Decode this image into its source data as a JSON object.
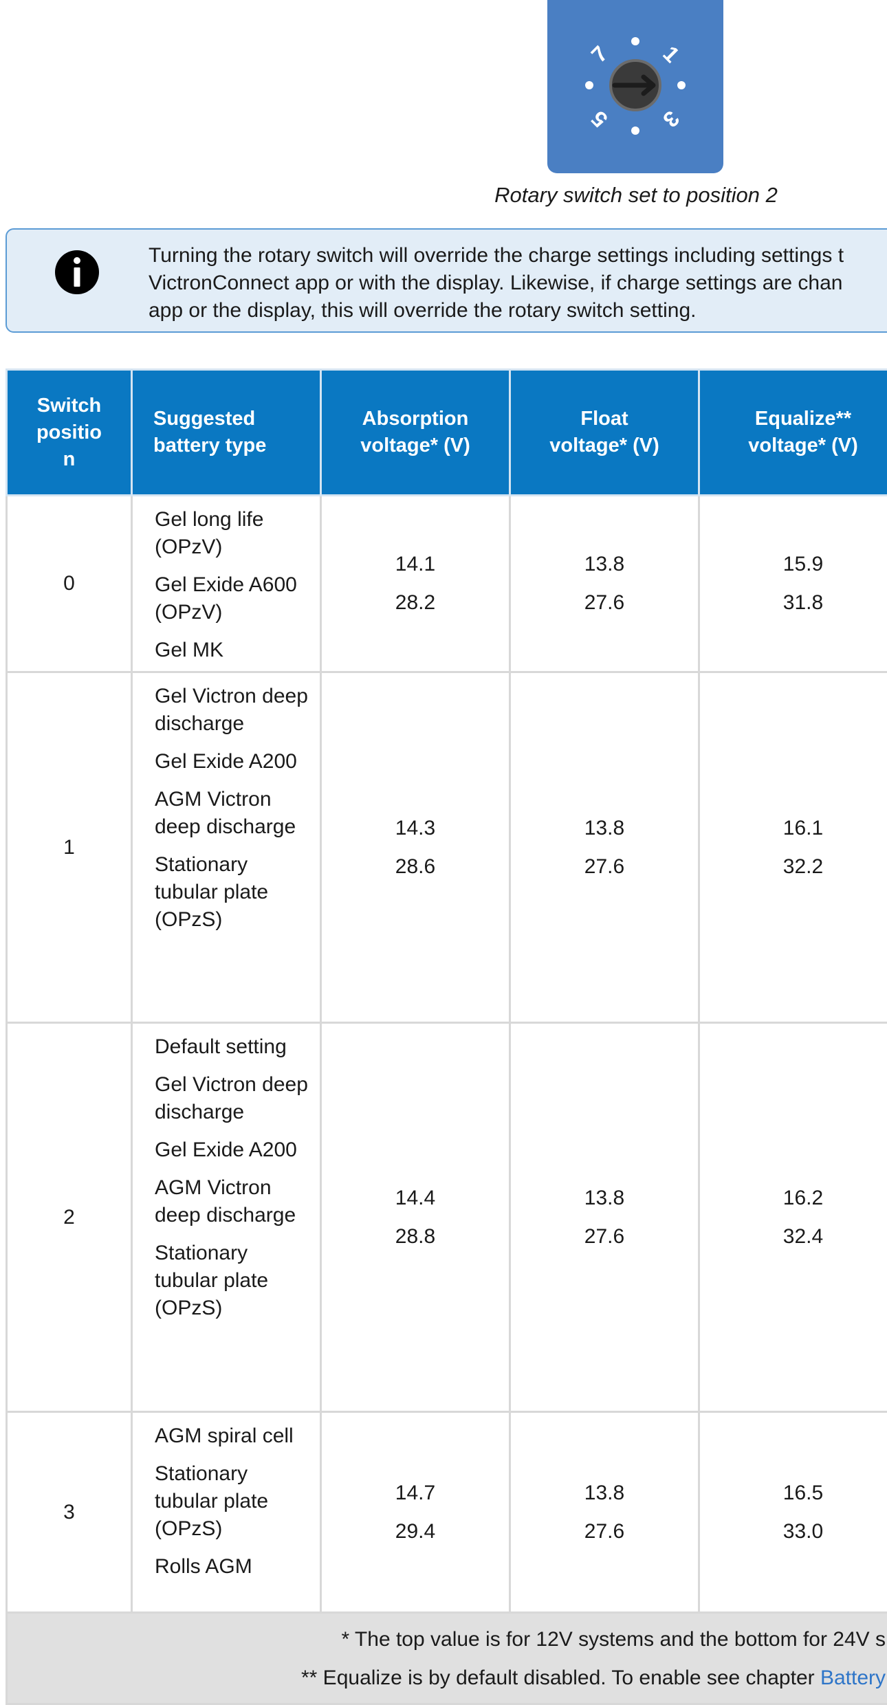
{
  "figure": {
    "dial_labels": [
      "7",
      "1",
      "5",
      "3"
    ],
    "caption": "Rotary switch set to position 2",
    "colors": {
      "panel": "#4a7fc3",
      "knob": "#3a3a3a"
    }
  },
  "note": {
    "icon": "info-icon",
    "text": "Turning the rotary switch will override the charge settings including settings t\nVictronConnect app or with the display. Likewise, if charge settings are chan\napp or the display, this will override the rotary switch setting."
  },
  "table": {
    "headers": [
      "Switch\npositio\nn",
      "Suggested\nbattery type",
      "Absorption\nvoltage* (V)",
      "Float\nvoltage* (V)",
      "Equalize**\nvoltage* (V)"
    ],
    "rows": [
      {
        "position": "0",
        "types": [
          "Gel long life (OPzV)",
          "Gel Exide A600 (OPzV)",
          "Gel MK"
        ],
        "absorption": [
          "14.1",
          "28.2"
        ],
        "float": [
          "13.8",
          "27.6"
        ],
        "equalize": [
          "15.9",
          "31.8"
        ]
      },
      {
        "position": "1",
        "types": [
          "Gel Victron deep discharge",
          "Gel Exide A200",
          "AGM Victron deep discharge",
          "Stationary tubular plate (OPzS)"
        ],
        "absorption": [
          "14.3",
          "28.6"
        ],
        "float": [
          "13.8",
          "27.6"
        ],
        "equalize": [
          "16.1",
          "32.2"
        ]
      },
      {
        "position": "2",
        "types": [
          "Default setting",
          "Gel Victron deep discharge",
          "Gel Exide A200",
          "AGM Victron deep discharge",
          "Stationary tubular plate (OPzS)"
        ],
        "absorption": [
          "14.4",
          "28.8"
        ],
        "float": [
          "13.8",
          "27.6"
        ],
        "equalize": [
          "16.2",
          "32.4"
        ]
      },
      {
        "position": "3",
        "types": [
          "AGM spiral cell",
          "Stationary tubular plate (OPzS)",
          "Rolls AGM"
        ],
        "absorption": [
          "14.7",
          "29.4"
        ],
        "float": [
          "13.8",
          "27.6"
        ],
        "equalize": [
          "16.5",
          "33.0"
        ]
      }
    ],
    "footnotes": {
      "line1": "* The top value is for 12V systems and the bottom for 24V s",
      "line2_prefix": "** Equalize is by default disabled. To enable see chapter ",
      "line2_link": "Battery"
    },
    "colors": {
      "header_bg": "#0a78c2",
      "footer_bg": "#e0e0e0",
      "link": "#2e75c8"
    }
  }
}
